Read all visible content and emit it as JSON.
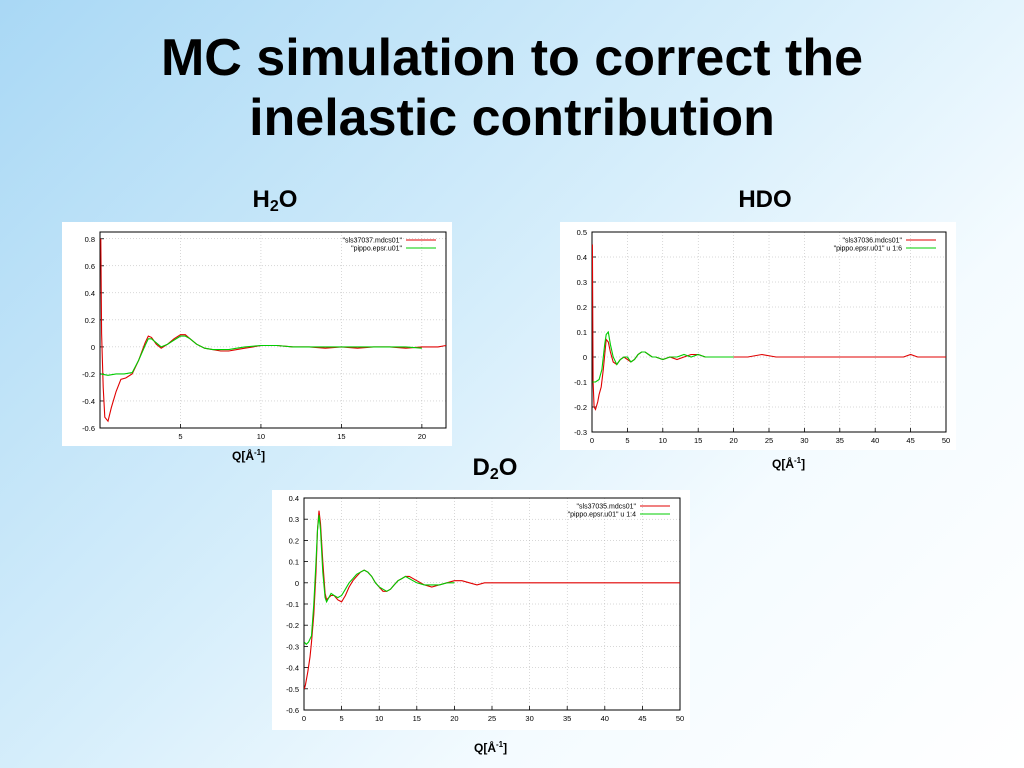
{
  "slide": {
    "title_line1": "MC  simulation to correct the",
    "title_line2": "inelastic contribution"
  },
  "colors": {
    "series1": "#e00000",
    "series2": "#00cc00",
    "axis": "#000000",
    "grid": "#b0b0b0"
  },
  "chart_data": [
    {
      "id": "h2o",
      "type": "line",
      "label_main": "H",
      "label_sub": "2",
      "label_tail": "O",
      "xlabel": "Q[Å-1]",
      "xlabel_main": "Q[Å",
      "xlabel_sup": "-1",
      "xlabel_tail": "]",
      "xlim": [
        0,
        21.5
      ],
      "ylim": [
        -0.6,
        0.85
      ],
      "xticks": [
        5,
        10,
        15,
        20
      ],
      "yticks": [
        -0.6,
        -0.4,
        -0.2,
        0,
        0.2,
        0.4,
        0.6,
        0.8
      ],
      "ytick_labels": [
        "-0.6",
        "-0.4",
        "-0.2",
        "0",
        "0.2",
        "0.4",
        "0.6",
        "0.8"
      ],
      "grid": true,
      "legend_position": "top-right",
      "series": [
        {
          "name": "\"sls37037.mdcs01\"",
          "x": [
            0.05,
            0.1,
            0.2,
            0.3,
            0.5,
            0.7,
            1.0,
            1.3,
            1.6,
            2.0,
            2.4,
            2.8,
            3.0,
            3.2,
            3.5,
            3.8,
            4.2,
            4.6,
            5.0,
            5.3,
            5.6,
            6.0,
            6.5,
            7.0,
            7.5,
            8.0,
            8.5,
            9.0,
            9.5,
            10,
            11,
            12,
            13,
            14,
            15,
            16,
            17,
            18,
            19,
            20,
            21,
            21.5
          ],
          "y": [
            0.8,
            0.1,
            -0.3,
            -0.52,
            -0.55,
            -0.45,
            -0.33,
            -0.24,
            -0.23,
            -0.2,
            -0.1,
            0.03,
            0.08,
            0.07,
            0.02,
            -0.01,
            0.02,
            0.06,
            0.09,
            0.09,
            0.06,
            0.02,
            -0.01,
            -0.02,
            -0.03,
            -0.03,
            -0.02,
            -0.01,
            0.0,
            0.01,
            0.01,
            0.0,
            0.0,
            -0.01,
            0.0,
            -0.01,
            0.0,
            0.0,
            -0.01,
            0.0,
            0.0,
            0.01
          ]
        },
        {
          "name": "\"pippo.epsr.u01\"",
          "x": [
            0.05,
            0.5,
            1.0,
            1.5,
            2.0,
            2.4,
            2.8,
            3.0,
            3.2,
            3.5,
            3.8,
            4.2,
            4.6,
            5.0,
            5.3,
            5.6,
            6.0,
            6.5,
            7.0,
            7.5,
            8.0,
            8.5,
            9.0,
            10,
            11,
            12,
            13,
            14,
            15,
            16,
            17,
            18,
            19,
            20
          ],
          "y": [
            -0.2,
            -0.21,
            -0.2,
            -0.2,
            -0.19,
            -0.1,
            0.01,
            0.06,
            0.06,
            0.03,
            0.0,
            0.02,
            0.05,
            0.08,
            0.08,
            0.06,
            0.02,
            -0.01,
            -0.02,
            -0.02,
            -0.02,
            -0.01,
            0.0,
            0.01,
            0.01,
            0.0,
            0.0,
            0.0,
            0.0,
            0.0,
            0.0,
            0.0,
            0.0,
            -0.01
          ]
        }
      ]
    },
    {
      "id": "hdo",
      "type": "line",
      "label_main": "HDO",
      "label_sub": "",
      "label_tail": "",
      "xlabel": "Q[Å-1]",
      "xlabel_main": "Q[Å",
      "xlabel_sup": "-1",
      "xlabel_tail": "]",
      "xlim": [
        0,
        50
      ],
      "ylim": [
        -0.3,
        0.5
      ],
      "xticks": [
        0,
        5,
        10,
        15,
        20,
        25,
        30,
        35,
        40,
        45,
        50
      ],
      "yticks": [
        -0.3,
        -0.2,
        -0.1,
        0,
        0.1,
        0.2,
        0.3,
        0.4,
        0.5
      ],
      "ytick_labels": [
        "-0.3",
        "-0.2",
        "-0.1",
        "0",
        "0.1",
        "0.2",
        "0.3",
        "0.4",
        "0.5"
      ],
      "grid": true,
      "legend_position": "top-right",
      "series": [
        {
          "name": "\"sls37036.mdcs01\"",
          "x": [
            0.05,
            0.15,
            0.3,
            0.5,
            0.8,
            1.0,
            1.3,
            1.6,
            2.0,
            2.3,
            2.6,
            3.0,
            3.5,
            4.0,
            4.5,
            5.0,
            5.5,
            6.0,
            6.5,
            7.0,
            7.5,
            8.0,
            8.5,
            9.0,
            10,
            11,
            12,
            13,
            14,
            15,
            16,
            17,
            18,
            19,
            20,
            22,
            24,
            26,
            28,
            30,
            32,
            34,
            36,
            38,
            40,
            42,
            44,
            45,
            46,
            48,
            50
          ],
          "y": [
            0.45,
            -0.1,
            -0.2,
            -0.21,
            -0.18,
            -0.15,
            -0.12,
            -0.05,
            0.07,
            0.06,
            0.02,
            -0.02,
            -0.03,
            -0.01,
            0.0,
            -0.01,
            -0.02,
            -0.01,
            0.01,
            0.02,
            0.02,
            0.01,
            0.0,
            0.0,
            -0.01,
            0.0,
            -0.01,
            0.0,
            0.01,
            0.01,
            0.0,
            0.0,
            0.0,
            0.0,
            0.0,
            0.0,
            0.01,
            0.0,
            0.0,
            0.0,
            0.0,
            0.0,
            0.0,
            0.0,
            0.0,
            0.0,
            0.0,
            0.01,
            0.0,
            0.0,
            0.0
          ]
        },
        {
          "name": "\"pippo.epsr.u01\" u 1:6",
          "x": [
            0.05,
            0.5,
            1.0,
            1.4,
            1.8,
            2.0,
            2.3,
            2.6,
            3.0,
            3.5,
            4.0,
            4.5,
            5.0,
            5.5,
            6.0,
            6.5,
            7.0,
            7.5,
            8.0,
            8.5,
            9.0,
            10,
            11,
            12,
            13,
            14,
            15,
            16,
            17,
            18,
            19,
            20
          ],
          "y": [
            -0.1,
            -0.1,
            -0.09,
            -0.05,
            0.05,
            0.09,
            0.1,
            0.05,
            0.0,
            -0.03,
            -0.01,
            0.0,
            0.0,
            -0.02,
            -0.01,
            0.01,
            0.02,
            0.02,
            0.01,
            0.0,
            0.0,
            -0.01,
            0.0,
            0.0,
            0.01,
            0.0,
            0.01,
            0.0,
            0.0,
            0.0,
            0.0,
            0.0
          ]
        }
      ]
    },
    {
      "id": "d2o",
      "type": "line",
      "label_main": "D",
      "label_sub": "2",
      "label_tail": "O",
      "xlabel": "Q[Å-1]",
      "xlabel_main": "Q[Å",
      "xlabel_sup": "-1",
      "xlabel_tail": "]",
      "xlim": [
        0,
        50
      ],
      "ylim": [
        -0.6,
        0.4
      ],
      "xticks": [
        0,
        5,
        10,
        15,
        20,
        25,
        30,
        35,
        40,
        45,
        50
      ],
      "yticks": [
        -0.6,
        -0.5,
        -0.4,
        -0.3,
        -0.2,
        -0.1,
        0,
        0.1,
        0.2,
        0.3,
        0.4
      ],
      "ytick_labels": [
        "-0.6",
        "-0.5",
        "-0.4",
        "-0.3",
        "-0.2",
        "-0.1",
        "0",
        "0.1",
        "0.2",
        "0.3",
        "0.4"
      ],
      "grid": true,
      "legend_position": "top-right",
      "series": [
        {
          "name": "\"sls37035.mdcs01\"",
          "x": [
            0.05,
            0.2,
            0.5,
            0.8,
            1.0,
            1.3,
            1.6,
            1.8,
            2.0,
            2.2,
            2.5,
            2.8,
            3.0,
            3.3,
            3.6,
            4.0,
            4.5,
            5.0,
            5.5,
            6.0,
            6.5,
            7.0,
            7.5,
            8.0,
            8.5,
            9.0,
            9.5,
            10,
            10.5,
            11,
            11.5,
            12,
            12.5,
            13,
            13.5,
            14,
            15,
            16,
            17,
            18,
            19,
            20,
            21,
            22,
            23,
            24,
            26,
            28,
            30,
            32,
            34,
            36,
            38,
            40,
            42,
            44,
            46,
            48,
            50
          ],
          "y": [
            -0.5,
            -0.48,
            -0.42,
            -0.35,
            -0.28,
            -0.15,
            0.05,
            0.25,
            0.34,
            0.28,
            0.1,
            -0.05,
            -0.08,
            -0.07,
            -0.06,
            -0.06,
            -0.08,
            -0.09,
            -0.06,
            -0.02,
            0.01,
            0.03,
            0.05,
            0.06,
            0.05,
            0.03,
            0.0,
            -0.02,
            -0.04,
            -0.04,
            -0.03,
            -0.01,
            0.01,
            0.02,
            0.03,
            0.03,
            0.01,
            -0.01,
            -0.02,
            -0.01,
            0.0,
            0.01,
            0.01,
            0.0,
            -0.01,
            0.0,
            0.0,
            0.0,
            0.0,
            0.0,
            0.0,
            0.0,
            0.0,
            0.0,
            0.0,
            0.0,
            0.0,
            0.0,
            0.0
          ]
        },
        {
          "name": "\"pippo.epsr.u01\" u 1:4",
          "x": [
            0.05,
            0.3,
            0.6,
            1.0,
            1.3,
            1.6,
            1.8,
            2.0,
            2.2,
            2.5,
            2.8,
            3.0,
            3.3,
            3.6,
            4.0,
            4.5,
            5.0,
            5.5,
            6.0,
            6.5,
            7.0,
            7.5,
            8.0,
            8.5,
            9.0,
            9.5,
            10,
            10.5,
            11,
            11.5,
            12,
            12.5,
            13,
            13.5,
            14,
            15,
            16,
            17,
            18,
            19,
            20
          ],
          "y": [
            -0.28,
            -0.29,
            -0.28,
            -0.25,
            -0.1,
            0.1,
            0.25,
            0.32,
            0.25,
            0.05,
            -0.07,
            -0.09,
            -0.07,
            -0.05,
            -0.06,
            -0.07,
            -0.06,
            -0.03,
            0.0,
            0.02,
            0.04,
            0.05,
            0.06,
            0.05,
            0.03,
            0.0,
            -0.02,
            -0.03,
            -0.04,
            -0.03,
            -0.01,
            0.01,
            0.02,
            0.03,
            0.02,
            0.0,
            -0.01,
            -0.01,
            -0.01,
            0.0,
            0.0
          ]
        }
      ]
    }
  ]
}
